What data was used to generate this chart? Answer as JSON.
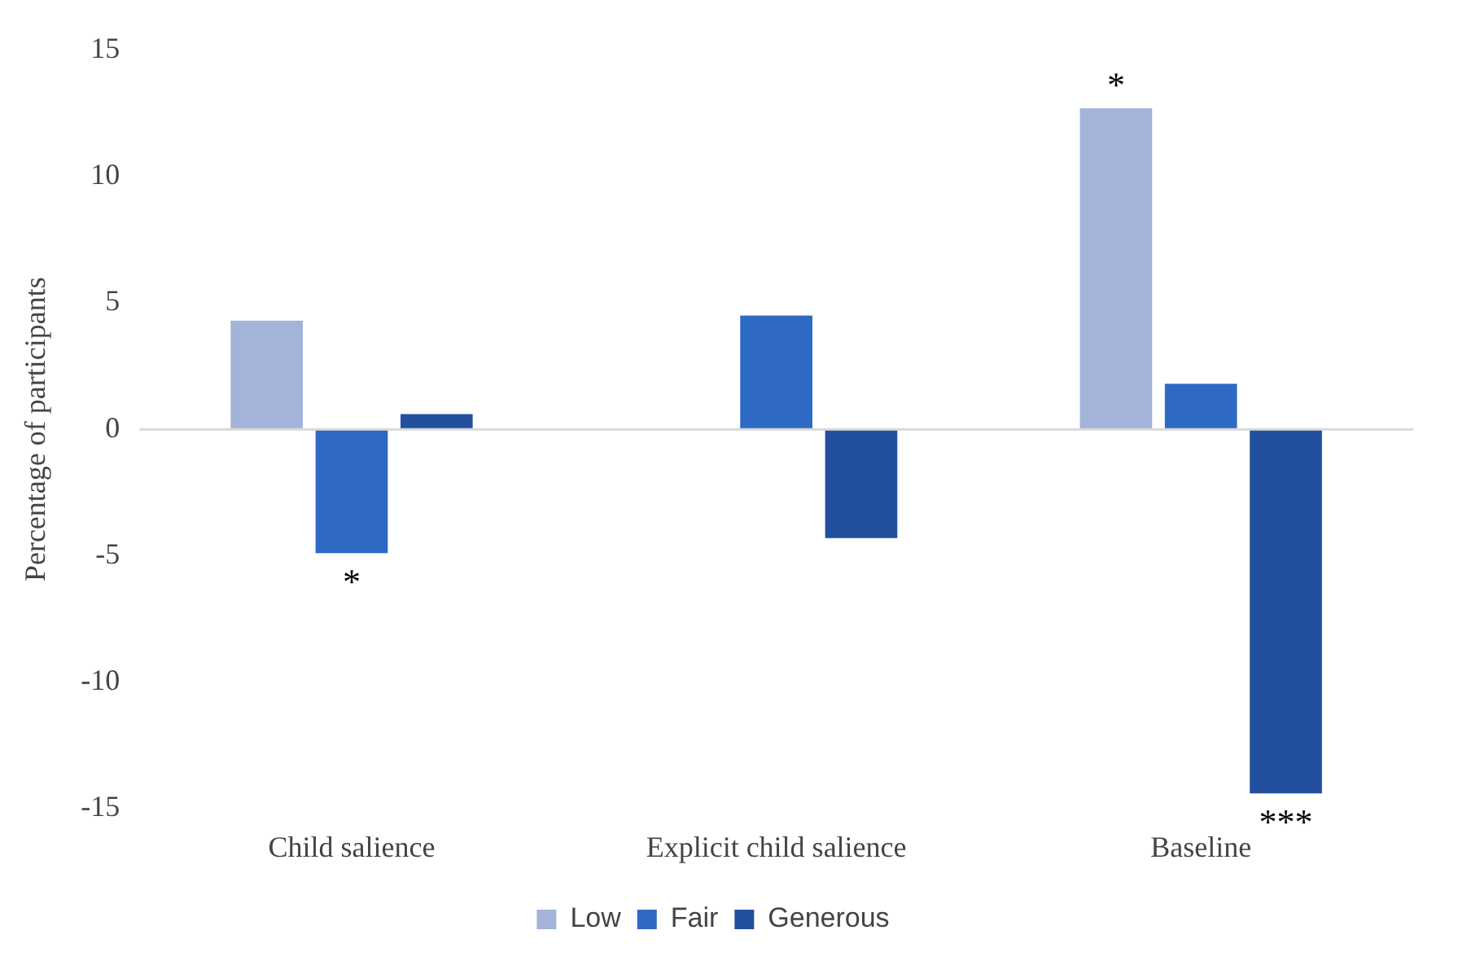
{
  "chart_data": {
    "type": "bar",
    "ylabel": "Percentage of participants",
    "categories": [
      "Child salience",
      "Explicit child salience",
      "Baseline"
    ],
    "series": [
      {
        "name": "Low",
        "color": "#a3b3d9",
        "values": [
          4.3,
          0,
          12.7
        ],
        "value_labels": [
          null,
          null,
          "*"
        ]
      },
      {
        "name": "Fair",
        "color": "#2e6ac4",
        "values": [
          -4.9,
          4.5,
          1.8
        ],
        "value_labels": [
          "*",
          null,
          null
        ]
      },
      {
        "name": "Generous",
        "color": "#22509e",
        "values": [
          0.6,
          -4.3,
          -14.4
        ],
        "value_labels": [
          null,
          null,
          "***"
        ]
      }
    ],
    "ylim": [
      -15,
      15
    ],
    "yticks": [
      -15,
      -10,
      -5,
      0,
      5,
      10,
      15
    ],
    "grid": false,
    "ref_lines": [
      {
        "axis": "y",
        "value": 0,
        "color": "#d9d9d9"
      }
    ],
    "legend": "bottom"
  }
}
